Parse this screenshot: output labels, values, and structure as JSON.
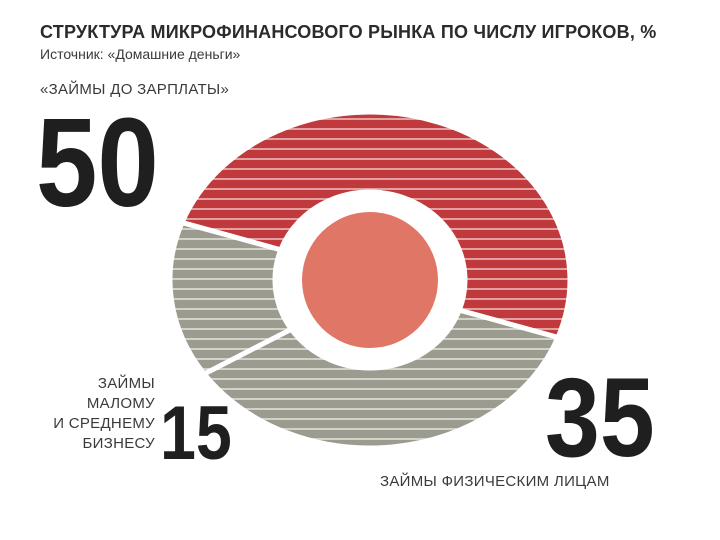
{
  "title": "СТРУКТУРА МИКРОФИНАНСОВОГО РЫНКА ПО ЧИСЛУ ИГРОКОВ, %",
  "source": "Источник: «Домашние деньги»",
  "colors": {
    "salary_loans": "#c0393d",
    "gray_segments": "#9b9b8f",
    "center": "#e07665",
    "text": "#1f1f1f"
  },
  "chart_data": {
    "type": "pie",
    "categories": [
      "«ЗАЙМЫ ДО ЗАРПЛАТЫ»",
      "ЗАЙМЫ ФИЗИЧЕСКИМ ЛИЦАМ",
      "ЗАЙМЫ МАЛОМУ И СРЕДНЕМУ БИЗНЕСУ"
    ],
    "values": [
      50,
      35,
      15
    ],
    "labels": {
      "salary": {
        "name": "«ЗАЙМЫ ДО ЗАРПЛАТЫ»",
        "value": "50"
      },
      "individuals": {
        "name": "ЗАЙМЫ ФИЗИЧЕСКИМ ЛИЦАМ",
        "value": "35"
      },
      "business": {
        "lines": [
          "ЗАЙМЫ",
          "МАЛОМУ",
          "И СРЕДНЕМУ",
          "БИЗНЕСУ"
        ],
        "value": "15"
      }
    }
  }
}
